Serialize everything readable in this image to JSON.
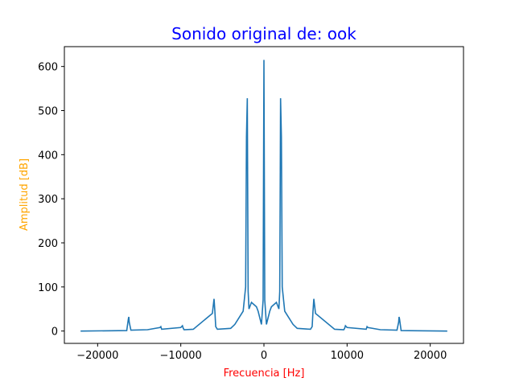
{
  "chart_data": {
    "type": "line",
    "title": "Sonido original de: ook",
    "xlabel": "Frecuencia [Hz]",
    "ylabel": "Amplitud [dB]",
    "xlim": [
      -24000,
      24000
    ],
    "ylim": [
      -28,
      645
    ],
    "x_ticks": [
      -20000,
      -10000,
      0,
      10000,
      20000
    ],
    "x_tick_labels": [
      "−20000",
      "−10000",
      "0",
      "10000",
      "20000"
    ],
    "y_ticks": [
      0,
      100,
      200,
      300,
      400,
      500,
      600
    ],
    "y_tick_labels": [
      "0",
      "100",
      "200",
      "300",
      "400",
      "500",
      "600"
    ],
    "grid": false,
    "colors": {
      "line": "#1f77b4",
      "title": "#0000ff",
      "xlabel": "#ff0000",
      "ylabel": "#ffa500",
      "axes": "#000000"
    },
    "series": [
      {
        "x": [
          -22050,
          -16500,
          -16300,
          -16250,
          -16200,
          -16000,
          -14000,
          -12500,
          -12400,
          -12300,
          -10000,
          -9800,
          -9700,
          -9600,
          -8500,
          -6200,
          -6000,
          -5900,
          -5800,
          -5600,
          -4000,
          -3500,
          -3000,
          -2500,
          -2200,
          -2100,
          -2000,
          -1950,
          -1900,
          -1800,
          -1500,
          -1200,
          -900,
          -700,
          -500,
          -300,
          -100,
          0,
          100,
          300,
          500,
          700,
          900,
          1200,
          1500,
          1800,
          1900,
          1950,
          2000,
          2100,
          2200,
          2500,
          3000,
          3500,
          4000,
          5600,
          5800,
          5900,
          6000,
          6200,
          8500,
          9600,
          9700,
          9800,
          10000,
          12300,
          12400,
          12500,
          14000,
          16000,
          16200,
          16250,
          16300,
          16500,
          22050
        ],
        "y": [
          0,
          1,
          28,
          32,
          20,
          2,
          3,
          8,
          10,
          4,
          8,
          12,
          6,
          3,
          4,
          40,
          73,
          45,
          10,
          4,
          6,
          15,
          30,
          45,
          100,
          440,
          528,
          300,
          90,
          50,
          65,
          60,
          55,
          45,
          30,
          15,
          70,
          615,
          70,
          15,
          30,
          45,
          55,
          60,
          65,
          50,
          90,
          300,
          528,
          440,
          100,
          45,
          30,
          15,
          6,
          4,
          10,
          45,
          73,
          40,
          4,
          3,
          6,
          12,
          8,
          4,
          10,
          8,
          3,
          2,
          20,
          32,
          28,
          1,
          0
        ]
      }
    ]
  }
}
